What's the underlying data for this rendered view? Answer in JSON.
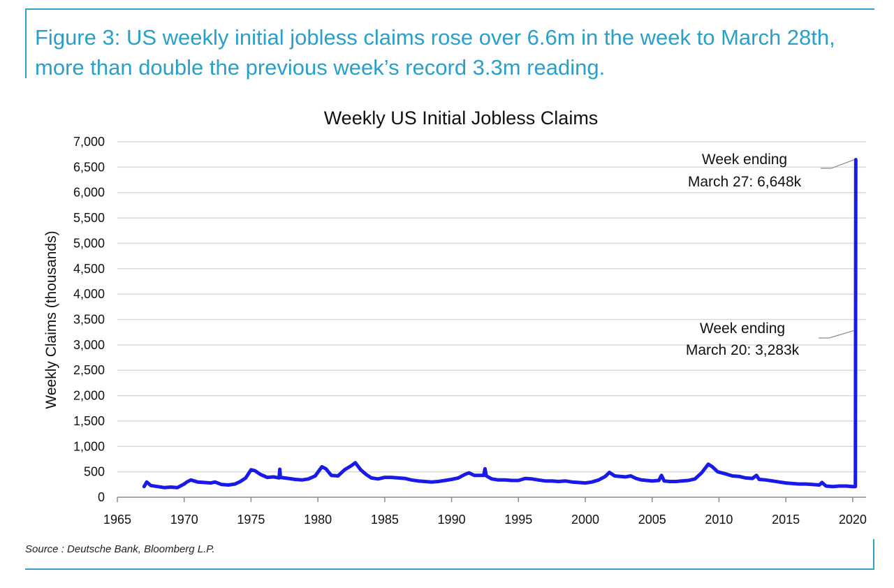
{
  "figure": {
    "title": "Figure 3: US weekly initial jobless claims rose over 6.6m in the week to March 28th, more than double the previous week’s record 3.3m reading.",
    "source": "Source : Deutsche Bank, Bloomberg L.P."
  },
  "colors": {
    "accent": "#3a9fc6",
    "title": "#2a9fc8",
    "series": "#1a1ae8",
    "grid": "#d9d9d9"
  },
  "chart_data": {
    "type": "line",
    "title": "Weekly US Initial Jobless Claims",
    "xlabel": "",
    "ylabel": "Weekly Claims (thousands)",
    "xlim": [
      1965,
      2021
    ],
    "ylim": [
      0,
      7000
    ],
    "x_ticks": [
      "1965",
      "1970",
      "1975",
      "1980",
      "1985",
      "1990",
      "1995",
      "2000",
      "2005",
      "2010",
      "2015",
      "2020"
    ],
    "y_ticks": [
      "0",
      "500",
      "1,000",
      "1,500",
      "2,000",
      "2,500",
      "3,000",
      "3,500",
      "4,000",
      "4,500",
      "5,000",
      "5,500",
      "6,000",
      "6,500",
      "7,000"
    ],
    "grid": "horizontal",
    "legend": "none",
    "series": [
      {
        "points": [
          [
            1967.0,
            210
          ],
          [
            1967.2,
            300
          ],
          [
            1967.5,
            230
          ],
          [
            1968.0,
            210
          ],
          [
            1968.5,
            190
          ],
          [
            1969.0,
            200
          ],
          [
            1969.5,
            190
          ],
          [
            1970.0,
            260
          ],
          [
            1970.2,
            300
          ],
          [
            1970.5,
            340
          ],
          [
            1971.0,
            300
          ],
          [
            1971.5,
            290
          ],
          [
            1972.0,
            280
          ],
          [
            1972.3,
            300
          ],
          [
            1972.8,
            250
          ],
          [
            1973.3,
            240
          ],
          [
            1973.8,
            260
          ],
          [
            1974.2,
            310
          ],
          [
            1974.6,
            380
          ],
          [
            1975.0,
            540
          ],
          [
            1975.3,
            520
          ],
          [
            1975.7,
            450
          ],
          [
            1976.2,
            390
          ],
          [
            1976.7,
            400
          ],
          [
            1977.1,
            380
          ],
          [
            1977.15,
            550
          ],
          [
            1977.2,
            390
          ],
          [
            1977.8,
            370
          ],
          [
            1978.3,
            350
          ],
          [
            1978.8,
            340
          ],
          [
            1979.3,
            360
          ],
          [
            1979.8,
            420
          ],
          [
            1980.3,
            600
          ],
          [
            1980.6,
            560
          ],
          [
            1981.0,
            430
          ],
          [
            1981.5,
            420
          ],
          [
            1982.0,
            540
          ],
          [
            1982.5,
            620
          ],
          [
            1982.8,
            680
          ],
          [
            1983.2,
            540
          ],
          [
            1983.6,
            450
          ],
          [
            1984.0,
            380
          ],
          [
            1984.5,
            360
          ],
          [
            1985.0,
            390
          ],
          [
            1985.5,
            390
          ],
          [
            1986.0,
            380
          ],
          [
            1986.5,
            370
          ],
          [
            1987.0,
            340
          ],
          [
            1987.5,
            320
          ],
          [
            1988.0,
            310
          ],
          [
            1988.5,
            300
          ],
          [
            1989.0,
            310
          ],
          [
            1989.5,
            330
          ],
          [
            1990.0,
            350
          ],
          [
            1990.5,
            380
          ],
          [
            1991.0,
            450
          ],
          [
            1991.3,
            480
          ],
          [
            1991.7,
            430
          ],
          [
            1992.0,
            430
          ],
          [
            1992.4,
            430
          ],
          [
            1992.5,
            560
          ],
          [
            1992.6,
            420
          ],
          [
            1993.0,
            360
          ],
          [
            1993.5,
            340
          ],
          [
            1994.0,
            340
          ],
          [
            1994.5,
            330
          ],
          [
            1995.0,
            330
          ],
          [
            1995.5,
            370
          ],
          [
            1996.0,
            360
          ],
          [
            1996.5,
            340
          ],
          [
            1997.0,
            320
          ],
          [
            1997.5,
            320
          ],
          [
            1998.0,
            310
          ],
          [
            1998.5,
            320
          ],
          [
            1999.0,
            300
          ],
          [
            1999.5,
            290
          ],
          [
            2000.0,
            280
          ],
          [
            2000.5,
            300
          ],
          [
            2001.0,
            340
          ],
          [
            2001.5,
            410
          ],
          [
            2001.8,
            490
          ],
          [
            2002.2,
            420
          ],
          [
            2002.6,
            410
          ],
          [
            2003.0,
            400
          ],
          [
            2003.4,
            420
          ],
          [
            2003.8,
            370
          ],
          [
            2004.2,
            340
          ],
          [
            2004.6,
            330
          ],
          [
            2005.0,
            320
          ],
          [
            2005.5,
            330
          ],
          [
            2005.7,
            430
          ],
          [
            2005.9,
            320
          ],
          [
            2006.3,
            310
          ],
          [
            2006.8,
            310
          ],
          [
            2007.2,
            320
          ],
          [
            2007.7,
            330
          ],
          [
            2008.2,
            360
          ],
          [
            2008.7,
            480
          ],
          [
            2009.2,
            650
          ],
          [
            2009.5,
            600
          ],
          [
            2009.9,
            500
          ],
          [
            2010.5,
            460
          ],
          [
            2011.0,
            420
          ],
          [
            2011.5,
            410
          ],
          [
            2012.0,
            380
          ],
          [
            2012.5,
            370
          ],
          [
            2012.8,
            430
          ],
          [
            2013.0,
            350
          ],
          [
            2013.5,
            340
          ],
          [
            2014.0,
            320
          ],
          [
            2014.5,
            300
          ],
          [
            2015.0,
            280
          ],
          [
            2015.5,
            270
          ],
          [
            2016.0,
            260
          ],
          [
            2016.5,
            260
          ],
          [
            2017.0,
            250
          ],
          [
            2017.5,
            240
          ],
          [
            2017.7,
            290
          ],
          [
            2018.0,
            220
          ],
          [
            2018.5,
            210
          ],
          [
            2019.0,
            220
          ],
          [
            2019.5,
            220
          ],
          [
            2020.0,
            210
          ],
          [
            2020.2,
            211
          ],
          [
            2020.215,
            3283
          ],
          [
            2020.23,
            6648
          ]
        ]
      }
    ],
    "annotations": [
      {
        "lines": [
          "Week ending",
          "March 27: 6,648k"
        ],
        "x": 2020.23,
        "y": 6648
      },
      {
        "lines": [
          "Week ending",
          "March 20: 3,283k"
        ],
        "x": 2020.215,
        "y": 3283
      }
    ]
  }
}
